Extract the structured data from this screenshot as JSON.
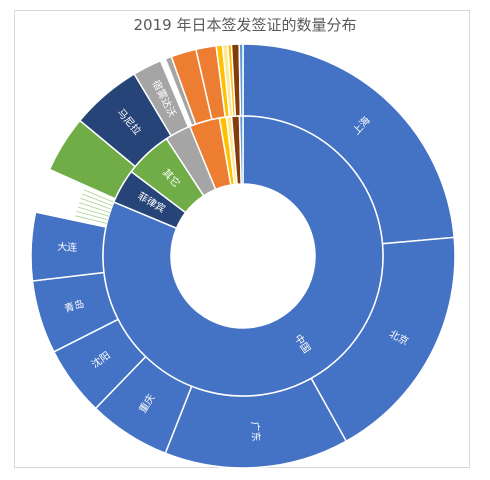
{
  "chart_data": {
    "type": "sunburst",
    "title": "2019 年日本签发签证的数量分布",
    "inner_ring": [
      {
        "label": "中国",
        "value": 81.3,
        "color": "#4472c4",
        "show_label": true
      },
      {
        "label": "菲律宾",
        "value": 4.0,
        "color": "#264478",
        "show_label": true
      },
      {
        "label": "其它",
        "value": 5.5,
        "color": "#70ad47",
        "show_label": true
      },
      {
        "label": "",
        "value": 3.0,
        "color": "#a5a5a5",
        "show_label": false
      },
      {
        "label": "",
        "value": 3.5,
        "color": "#ed7d31",
        "show_label": false
      },
      {
        "label": "",
        "value": 0.8,
        "color": "#ffc000",
        "show_label": false
      },
      {
        "label": "",
        "value": 0.6,
        "color": "#ffe699",
        "show_label": false
      },
      {
        "label": "",
        "value": 0.9,
        "color": "#843c0c",
        "show_label": false
      },
      {
        "label": "",
        "value": 0.4,
        "color": "#5b9bd5",
        "show_label": false
      }
    ],
    "outer_ring": [
      {
        "label": "上海",
        "value": 24.5,
        "color": "#4472c4",
        "show_label": true
      },
      {
        "label": "北京",
        "value": 19.0,
        "color": "#4472c4",
        "show_label": true
      },
      {
        "label": "广东",
        "value": 14.6,
        "color": "#4472c4",
        "show_label": true
      },
      {
        "label": "重庆",
        "value": 6.5,
        "color": "#4472c4",
        "show_label": true
      },
      {
        "label": "沈阳",
        "value": 5.5,
        "color": "#4472c4",
        "show_label": true
      },
      {
        "label": "青岛",
        "value": 5.8,
        "color": "#4472c4",
        "show_label": true
      },
      {
        "label": "大连",
        "value": 5.4,
        "color": "#4472c4",
        "show_label": true
      },
      {
        "label": "",
        "value": 3.5,
        "color": "#ffffff",
        "show_label": false
      },
      {
        "label": "",
        "value": 4.5,
        "color": "#70ad47",
        "show_label": false
      },
      {
        "label": "马尼拉",
        "value": 5.6,
        "color": "#264478",
        "show_label": true
      },
      {
        "label": "宿雾达沃",
        "value": 2.3,
        "color": "#a5a5a5",
        "show_label": true
      },
      {
        "label": "",
        "value": 0.4,
        "color": "#ffffff",
        "show_label": false
      },
      {
        "label": "",
        "value": 0.5,
        "color": "#a5a5a5",
        "show_label": false
      },
      {
        "label": "",
        "value": 2.0,
        "color": "#ed7d31",
        "show_label": false
      },
      {
        "label": "",
        "value": 1.6,
        "color": "#ed7d31",
        "show_label": false
      },
      {
        "label": "",
        "value": 0.5,
        "color": "#ffc000",
        "show_label": false
      },
      {
        "label": "",
        "value": 0.4,
        "color": "#ffe699",
        "show_label": false
      },
      {
        "label": "",
        "value": 0.3,
        "color": "#ffc000",
        "show_label": false
      },
      {
        "label": "",
        "value": 0.6,
        "color": "#843c0c",
        "show_label": false
      },
      {
        "label": "",
        "value": 0.3,
        "color": "#5b9bd5",
        "show_label": false
      }
    ]
  }
}
